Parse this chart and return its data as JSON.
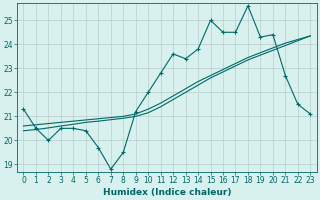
{
  "xlabel": "Humidex (Indice chaleur)",
  "bg_color": "#d8f0ee",
  "grid_color": "#b8cece",
  "line_color": "#006868",
  "xlim": [
    -0.5,
    23.5
  ],
  "ylim": [
    18.7,
    25.7
  ],
  "yticks": [
    19,
    20,
    21,
    22,
    23,
    24,
    25
  ],
  "xticks": [
    0,
    1,
    2,
    3,
    4,
    5,
    6,
    7,
    8,
    9,
    10,
    11,
    12,
    13,
    14,
    15,
    16,
    17,
    18,
    19,
    20,
    21,
    22,
    23
  ],
  "main_y": [
    21.3,
    20.5,
    20.0,
    20.5,
    20.5,
    20.4,
    19.7,
    18.8,
    19.5,
    21.2,
    22.0,
    22.8,
    23.6,
    23.4,
    23.8,
    25.0,
    24.5,
    24.5,
    25.6,
    24.3,
    24.4,
    22.7,
    21.5,
    21.1
  ],
  "trend1_y": [
    20.6,
    20.65,
    20.7,
    20.75,
    20.8,
    20.85,
    20.9,
    20.95,
    21.0,
    21.1,
    21.3,
    21.55,
    21.85,
    22.15,
    22.45,
    22.7,
    22.95,
    23.2,
    23.45,
    23.65,
    23.85,
    24.05,
    24.2,
    24.35
  ],
  "trend2_y": [
    20.4,
    20.45,
    20.52,
    20.6,
    20.67,
    20.75,
    20.8,
    20.86,
    20.92,
    21.0,
    21.15,
    21.4,
    21.7,
    22.0,
    22.3,
    22.6,
    22.85,
    23.1,
    23.35,
    23.55,
    23.75,
    23.95,
    24.15,
    24.35
  ],
  "tick_fontsize": 5.5,
  "label_fontsize": 6.5
}
